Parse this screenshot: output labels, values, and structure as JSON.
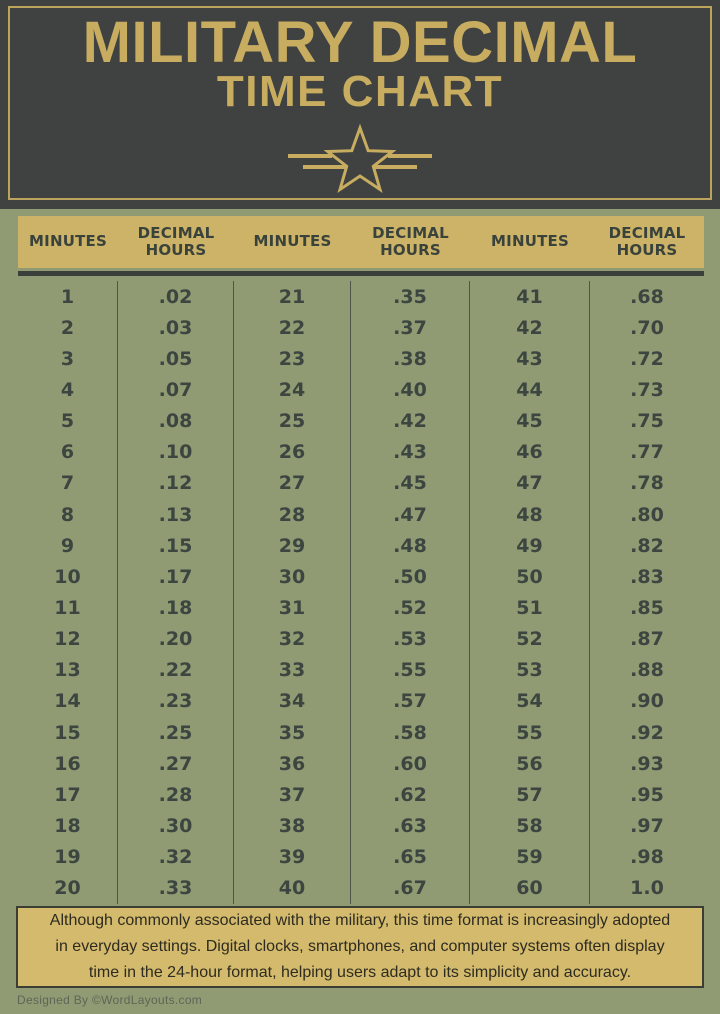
{
  "header": {
    "title_line1": "MILITARY DECIMAL",
    "title_line2": "TIME CHART"
  },
  "table": {
    "column_headers": [
      "MINUTES",
      "DECIMAL HOURS",
      "MINUTES",
      "DECIMAL HOURS",
      "MINUTES",
      "DECIMAL HOURS"
    ],
    "groups": [
      {
        "minutes": [
          "1",
          "2",
          "3",
          "4",
          "5",
          "6",
          "7",
          "8",
          "9",
          "10",
          "11",
          "12",
          "13",
          "14",
          "15",
          "16",
          "17",
          "18",
          "19",
          "20"
        ],
        "decimal_hours": [
          ".02",
          ".03",
          ".05",
          ".07",
          ".08",
          ".10",
          ".12",
          ".13",
          ".15",
          ".17",
          ".18",
          ".20",
          ".22",
          ".23",
          ".25",
          ".27",
          ".28",
          ".30",
          ".32",
          ".33"
        ]
      },
      {
        "minutes": [
          "21",
          "22",
          "23",
          "24",
          "25",
          "26",
          "27",
          "28",
          "29",
          "30",
          "31",
          "32",
          "33",
          "34",
          "35",
          "36",
          "37",
          "38",
          "39",
          "40"
        ],
        "decimal_hours": [
          ".35",
          ".37",
          ".38",
          ".40",
          ".42",
          ".43",
          ".45",
          ".47",
          ".48",
          ".50",
          ".52",
          ".53",
          ".55",
          ".57",
          ".58",
          ".60",
          ".62",
          ".63",
          ".65",
          ".67"
        ]
      },
      {
        "minutes": [
          "41",
          "42",
          "43",
          "44",
          "45",
          "46",
          "47",
          "48",
          "49",
          "50",
          "51",
          "52",
          "53",
          "54",
          "55",
          "56",
          "57",
          "58",
          "59",
          "60"
        ],
        "decimal_hours": [
          ".68",
          ".70",
          ".72",
          ".73",
          ".75",
          ".77",
          ".78",
          ".80",
          ".82",
          ".83",
          ".85",
          ".87",
          ".88",
          ".90",
          ".92",
          ".93",
          ".95",
          ".97",
          ".98",
          "1.0"
        ]
      }
    ]
  },
  "note": {
    "lines": [
      "Although commonly associated with the military, this time format is increasingly adopted",
      "in everyday settings. Digital clocks, smartphones, and computer systems often display",
      "time in the 24-hour format, helping users adapt to its simplicity and accuracy."
    ]
  },
  "credit": "Designed By ©WordLayouts.com",
  "colors": {
    "background_olive": "#909a73",
    "header_dark": "#3f4241",
    "gold_accent": "#c8ad60",
    "band_gold": "#ccb367",
    "note_gold": "#d3ba6c",
    "table_text": "#3c453f"
  }
}
